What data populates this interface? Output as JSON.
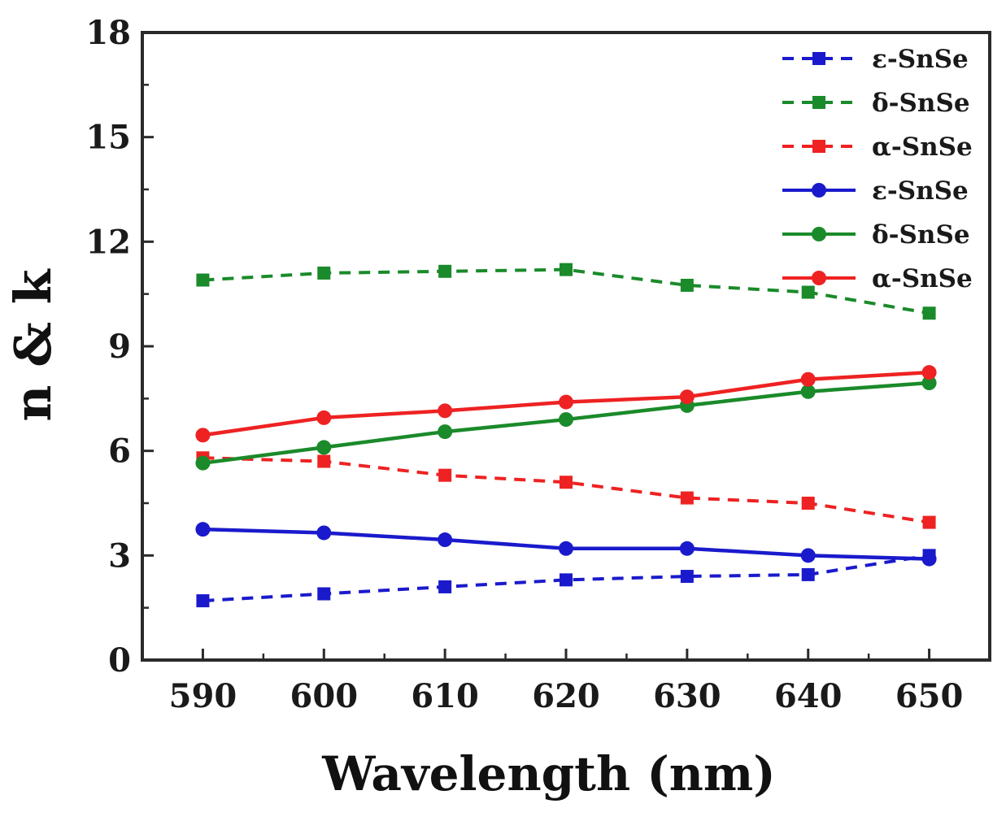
{
  "chart_data": {
    "type": "line",
    "title": "",
    "xlabel": "Wavelength (nm)",
    "ylabel": "n & k",
    "x": [
      590,
      600,
      610,
      620,
      630,
      640,
      650
    ],
    "xlim": [
      585,
      655
    ],
    "ylim": [
      0,
      18
    ],
    "x_ticks": [
      "590",
      "600",
      "610",
      "620",
      "630",
      "640",
      "650"
    ],
    "y_ticks": [
      "0",
      "3",
      "6",
      "9",
      "12",
      "15",
      "18"
    ],
    "x_tick_values": [
      590,
      600,
      610,
      620,
      630,
      640,
      650
    ],
    "y_tick_values": [
      0,
      3,
      6,
      9,
      12,
      15,
      18
    ],
    "grid": false,
    "legend_position": "top-right",
    "series": [
      {
        "name": "ε-SnSe",
        "color": "#1a1acc",
        "style": "dashed",
        "marker": "square",
        "values": [
          1.7,
          1.9,
          2.1,
          2.3,
          2.4,
          2.45,
          3.0
        ]
      },
      {
        "name": "δ-SnSe",
        "color": "#1a8a2a",
        "style": "dashed",
        "marker": "square",
        "values": [
          10.9,
          11.1,
          11.15,
          11.2,
          10.75,
          10.55,
          9.95
        ]
      },
      {
        "name": "α-SnSe",
        "color": "#ee2222",
        "style": "dashed",
        "marker": "square",
        "values": [
          5.8,
          5.7,
          5.3,
          5.1,
          4.65,
          4.5,
          3.95
        ]
      },
      {
        "name": "ε-SnSe",
        "color": "#1a1acc",
        "style": "solid",
        "marker": "circle",
        "values": [
          3.75,
          3.65,
          3.45,
          3.2,
          3.2,
          3.0,
          2.9
        ]
      },
      {
        "name": "δ-SnSe",
        "color": "#1a8a2a",
        "style": "solid",
        "marker": "circle",
        "values": [
          5.65,
          6.1,
          6.55,
          6.9,
          7.3,
          7.7,
          7.95
        ]
      },
      {
        "name": "α-SnSe",
        "color": "#ee2222",
        "style": "solid",
        "marker": "circle",
        "values": [
          6.45,
          6.95,
          7.15,
          7.4,
          7.55,
          8.05,
          8.25
        ]
      }
    ]
  }
}
